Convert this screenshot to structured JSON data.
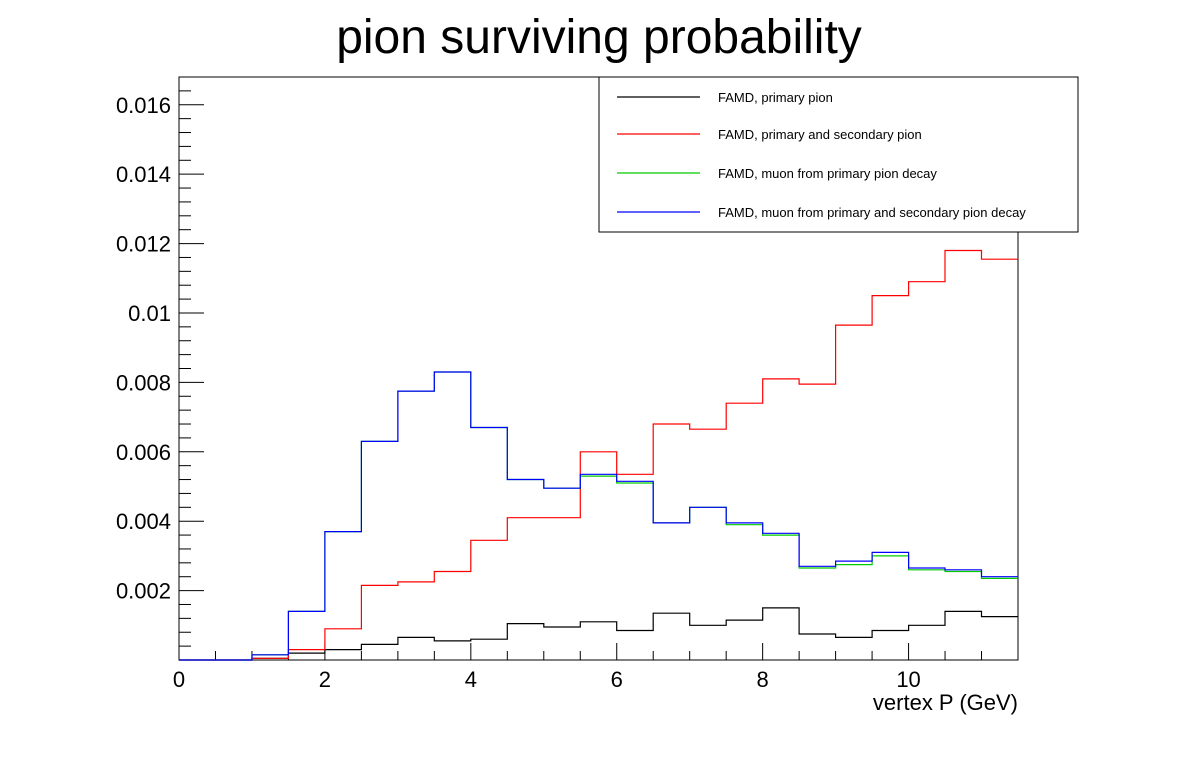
{
  "chart_data": {
    "type": "line",
    "style": "step-histogram",
    "title": "pion surviving probability",
    "xlabel": "vertex P (GeV)",
    "ylabel": "",
    "xlim": [
      0,
      11.5
    ],
    "ylim": [
      0,
      0.0168
    ],
    "x_ticks": [
      0,
      2,
      4,
      6,
      8,
      10
    ],
    "y_ticks": [
      0.002,
      0.004,
      0.006,
      0.008,
      0.01,
      0.012,
      0.014,
      0.016
    ],
    "x_tick_labels": [
      "0",
      "2",
      "4",
      "6",
      "8",
      "10"
    ],
    "y_tick_labels": [
      "0.002",
      "0.004",
      "0.006",
      "0.008",
      "0.01",
      "0.012",
      "0.014",
      "0.016"
    ],
    "bin_edges": [
      0,
      0.5,
      1,
      1.5,
      2,
      2.5,
      3,
      3.5,
      4,
      4.5,
      5,
      5.5,
      6,
      6.5,
      7,
      7.5,
      8,
      8.5,
      9,
      9.5,
      10,
      10.5,
      11,
      11.5
    ],
    "legend_position": "top-right",
    "grid": false,
    "series": [
      {
        "name": "FAMD, primary pion",
        "color": "#000000",
        "values": [
          0,
          0,
          5e-05,
          0.0002,
          0.0003,
          0.00045,
          0.00065,
          0.00055,
          0.0006,
          0.00105,
          0.00095,
          0.0011,
          0.00085,
          0.00135,
          0.001,
          0.00115,
          0.0015,
          0.00075,
          0.00065,
          0.00085,
          0.001,
          0.0014,
          0.00125
        ]
      },
      {
        "name": "FAMD, primary and secondary pion",
        "color": "#ff0000",
        "values": [
          0,
          0,
          5e-05,
          0.0003,
          0.0009,
          0.00215,
          0.00225,
          0.00255,
          0.00345,
          0.0041,
          0.0041,
          0.006,
          0.00535,
          0.0068,
          0.00665,
          0.0074,
          0.0081,
          0.00795,
          0.00965,
          0.0105,
          0.0109,
          0.0118,
          0.01155
        ]
      },
      {
        "name": "FAMD, muon from primary pion decay",
        "color": "#00cc00",
        "values": [
          0,
          0,
          0.00015,
          0.0014,
          0.0037,
          0.0063,
          0.00775,
          0.0083,
          0.0067,
          0.0052,
          0.00495,
          0.0053,
          0.0051,
          0.00395,
          0.0044,
          0.0039,
          0.0036,
          0.00265,
          0.00275,
          0.003,
          0.0026,
          0.00255,
          0.00235
        ]
      },
      {
        "name": "FAMD, muon from primary and secondary pion decay",
        "color": "#0000ff",
        "values": [
          0,
          0,
          0.00015,
          0.0014,
          0.0037,
          0.0063,
          0.00775,
          0.0083,
          0.0067,
          0.0052,
          0.00495,
          0.00535,
          0.00515,
          0.00395,
          0.0044,
          0.00395,
          0.00365,
          0.0027,
          0.00285,
          0.0031,
          0.00265,
          0.0026,
          0.0024
        ]
      }
    ]
  }
}
